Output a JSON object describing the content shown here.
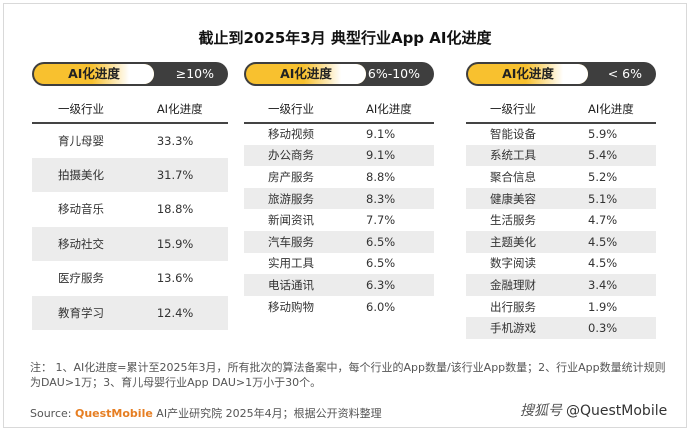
{
  "title": "截止到2025年3月 典型行业App AI化进度",
  "columns": {
    "industry": "一级行业",
    "progress": "AI化进度"
  },
  "pill_label": "AI化进度",
  "panels": [
    {
      "range": "≥10%",
      "rows": [
        [
          "育儿母婴",
          "33.3%"
        ],
        [
          "拍摄美化",
          "31.7%"
        ],
        [
          "移动音乐",
          "18.8%"
        ],
        [
          "移动社交",
          "15.9%"
        ],
        [
          "医疗服务",
          "13.6%"
        ],
        [
          "教育学习",
          "12.4%"
        ]
      ]
    },
    {
      "range": "6%-10%",
      "rows": [
        [
          "移动视频",
          "9.1%"
        ],
        [
          "办公商务",
          "9.1%"
        ],
        [
          "房产服务",
          "8.8%"
        ],
        [
          "旅游服务",
          "8.3%"
        ],
        [
          "新闻资讯",
          "7.7%"
        ],
        [
          "汽车服务",
          "6.5%"
        ],
        [
          "实用工具",
          "6.5%"
        ],
        [
          "电话通讯",
          "6.3%"
        ],
        [
          "移动购物",
          "6.0%"
        ]
      ]
    },
    {
      "range": "< 6%",
      "rows": [
        [
          "智能设备",
          "5.9%"
        ],
        [
          "系统工具",
          "5.4%"
        ],
        [
          "聚合信息",
          "5.2%"
        ],
        [
          "健康美容",
          "5.1%"
        ],
        [
          "生活服务",
          "4.7%"
        ],
        [
          "主题美化",
          "4.5%"
        ],
        [
          "数字阅读",
          "4.5%"
        ],
        [
          "金融理财",
          "3.4%"
        ],
        [
          "出行服务",
          "1.9%"
        ],
        [
          "手机游戏",
          "0.3%"
        ]
      ]
    }
  ],
  "note": "注： 1、AI化进度=累计至2025年3月，所有批次的算法备案中，每个行业的App数量/该行业App数量；2、行业App数量统计规则为DAU>1万；3、育儿母婴行业App DAU>1万小于30个。",
  "source": {
    "prefix": "Source: ",
    "brand": "QuestMobile",
    "rest": " AI产业研究院 2025年4月；根据公开资料整理"
  },
  "credit": {
    "sohu": "搜狐号",
    "handle": "@QuestMobile"
  },
  "chart_data": {
    "type": "table",
    "title": "截止到2025年3月 典型行业App AI化进度",
    "columns": [
      "一级行业",
      "AI化进度"
    ],
    "groups": [
      {
        "name": "≥10%",
        "rows": [
          [
            "育儿母婴",
            33.3
          ],
          [
            "拍摄美化",
            31.7
          ],
          [
            "移动音乐",
            18.8
          ],
          [
            "移动社交",
            15.9
          ],
          [
            "医疗服务",
            13.6
          ],
          [
            "教育学习",
            12.4
          ]
        ]
      },
      {
        "name": "6%-10%",
        "rows": [
          [
            "移动视频",
            9.1
          ],
          [
            "办公商务",
            9.1
          ],
          [
            "房产服务",
            8.8
          ],
          [
            "旅游服务",
            8.3
          ],
          [
            "新闻资讯",
            7.7
          ],
          [
            "汽车服务",
            6.5
          ],
          [
            "实用工具",
            6.5
          ],
          [
            "电话通讯",
            6.3
          ],
          [
            "移动购物",
            6.0
          ]
        ]
      },
      {
        "name": "< 6%",
        "rows": [
          [
            "智能设备",
            5.9
          ],
          [
            "系统工具",
            5.4
          ],
          [
            "聚合信息",
            5.2
          ],
          [
            "健康美容",
            5.1
          ],
          [
            "生活服务",
            4.7
          ],
          [
            "主题美化",
            4.5
          ],
          [
            "数字阅读",
            4.5
          ],
          [
            "金融理财",
            3.4
          ],
          [
            "出行服务",
            1.9
          ],
          [
            "手机游戏",
            0.3
          ]
        ]
      }
    ]
  }
}
